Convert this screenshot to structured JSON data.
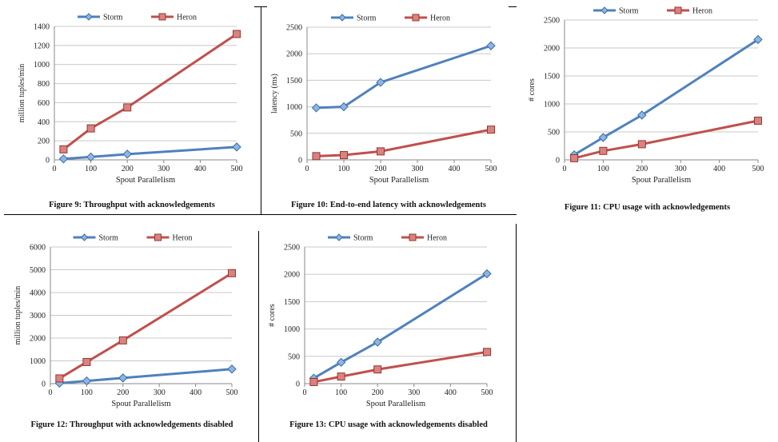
{
  "colors": {
    "storm": "#4f81bd",
    "heron": "#c0504d",
    "grid": "#c8c8c8",
    "axis": "#888888"
  },
  "chart_data": [
    {
      "type": "line",
      "title": "",
      "caption": "Figure 9: Throughput with acknowledgements",
      "xlabel": "Spout Parallelism",
      "ylabel": "million tuples/min",
      "xlim": [
        0,
        500
      ],
      "ylim": [
        0,
        1400
      ],
      "xticks": [
        0,
        100,
        200,
        300,
        400,
        500
      ],
      "yticks": [
        0,
        200,
        400,
        600,
        800,
        1000,
        1200,
        1400
      ],
      "legend": "top",
      "x": [
        25,
        100,
        200,
        500
      ],
      "series": [
        {
          "name": "Storm",
          "values": [
            10,
            30,
            60,
            135
          ]
        },
        {
          "name": "Heron",
          "values": [
            110,
            330,
            550,
            1320
          ]
        }
      ]
    },
    {
      "type": "line",
      "title": "",
      "caption": "Figure 10: End-to-end latency with acknowledgements",
      "xlabel": "Spout Parallelism",
      "ylabel": "latency (ms)",
      "xlim": [
        0,
        500
      ],
      "ylim": [
        0,
        2500
      ],
      "xticks": [
        0,
        100,
        200,
        300,
        400,
        500
      ],
      "yticks": [
        0,
        500,
        1000,
        1500,
        2000,
        2500
      ],
      "legend": "top",
      "x": [
        25,
        100,
        200,
        500
      ],
      "series": [
        {
          "name": "Storm",
          "values": [
            980,
            1000,
            1460,
            2150
          ]
        },
        {
          "name": "Heron",
          "values": [
            70,
            90,
            160,
            570
          ]
        }
      ]
    },
    {
      "type": "line",
      "title": "",
      "caption": "Figure 11: CPU usage with acknowledgements",
      "xlabel": "Spout Parallelism",
      "ylabel": "# cores",
      "xlim": [
        0,
        500
      ],
      "ylim": [
        0,
        2500
      ],
      "xticks": [
        0,
        100,
        200,
        300,
        400,
        500
      ],
      "yticks": [
        0,
        500,
        1000,
        1500,
        2000,
        2500
      ],
      "legend": "top",
      "x": [
        25,
        100,
        200,
        500
      ],
      "series": [
        {
          "name": "Storm",
          "values": [
            90,
            400,
            800,
            2150
          ]
        },
        {
          "name": "Heron",
          "values": [
            30,
            160,
            280,
            700
          ]
        }
      ]
    },
    {
      "type": "line",
      "title": "",
      "caption": "Figure 12: Throughput with acknowledgements disabled",
      "xlabel": "Spout Parallelism",
      "ylabel": "million tuples/min",
      "xlim": [
        0,
        500
      ],
      "ylim": [
        0,
        6000
      ],
      "xticks": [
        0,
        100,
        200,
        300,
        400,
        500
      ],
      "yticks": [
        0,
        1000,
        2000,
        3000,
        4000,
        5000,
        6000
      ],
      "legend": "top",
      "x": [
        25,
        100,
        200,
        500
      ],
      "series": [
        {
          "name": "Storm",
          "values": [
            20,
            120,
            250,
            640
          ]
        },
        {
          "name": "Heron",
          "values": [
            230,
            950,
            1900,
            4850
          ]
        }
      ]
    },
    {
      "type": "line",
      "title": "",
      "caption": "Figure 13: CPU usage with acknowledgements disabled",
      "xlabel": "Spout Parallelism",
      "ylabel": "# cores",
      "xlim": [
        0,
        500
      ],
      "ylim": [
        0,
        2500
      ],
      "xticks": [
        0,
        100,
        200,
        300,
        400,
        500
      ],
      "yticks": [
        0,
        500,
        1000,
        1500,
        2000,
        2500
      ],
      "legend": "top",
      "x": [
        25,
        100,
        200,
        500
      ],
      "series": [
        {
          "name": "Storm",
          "values": [
            100,
            390,
            760,
            2010
          ]
        },
        {
          "name": "Heron",
          "values": [
            30,
            130,
            260,
            580
          ]
        }
      ]
    }
  ]
}
